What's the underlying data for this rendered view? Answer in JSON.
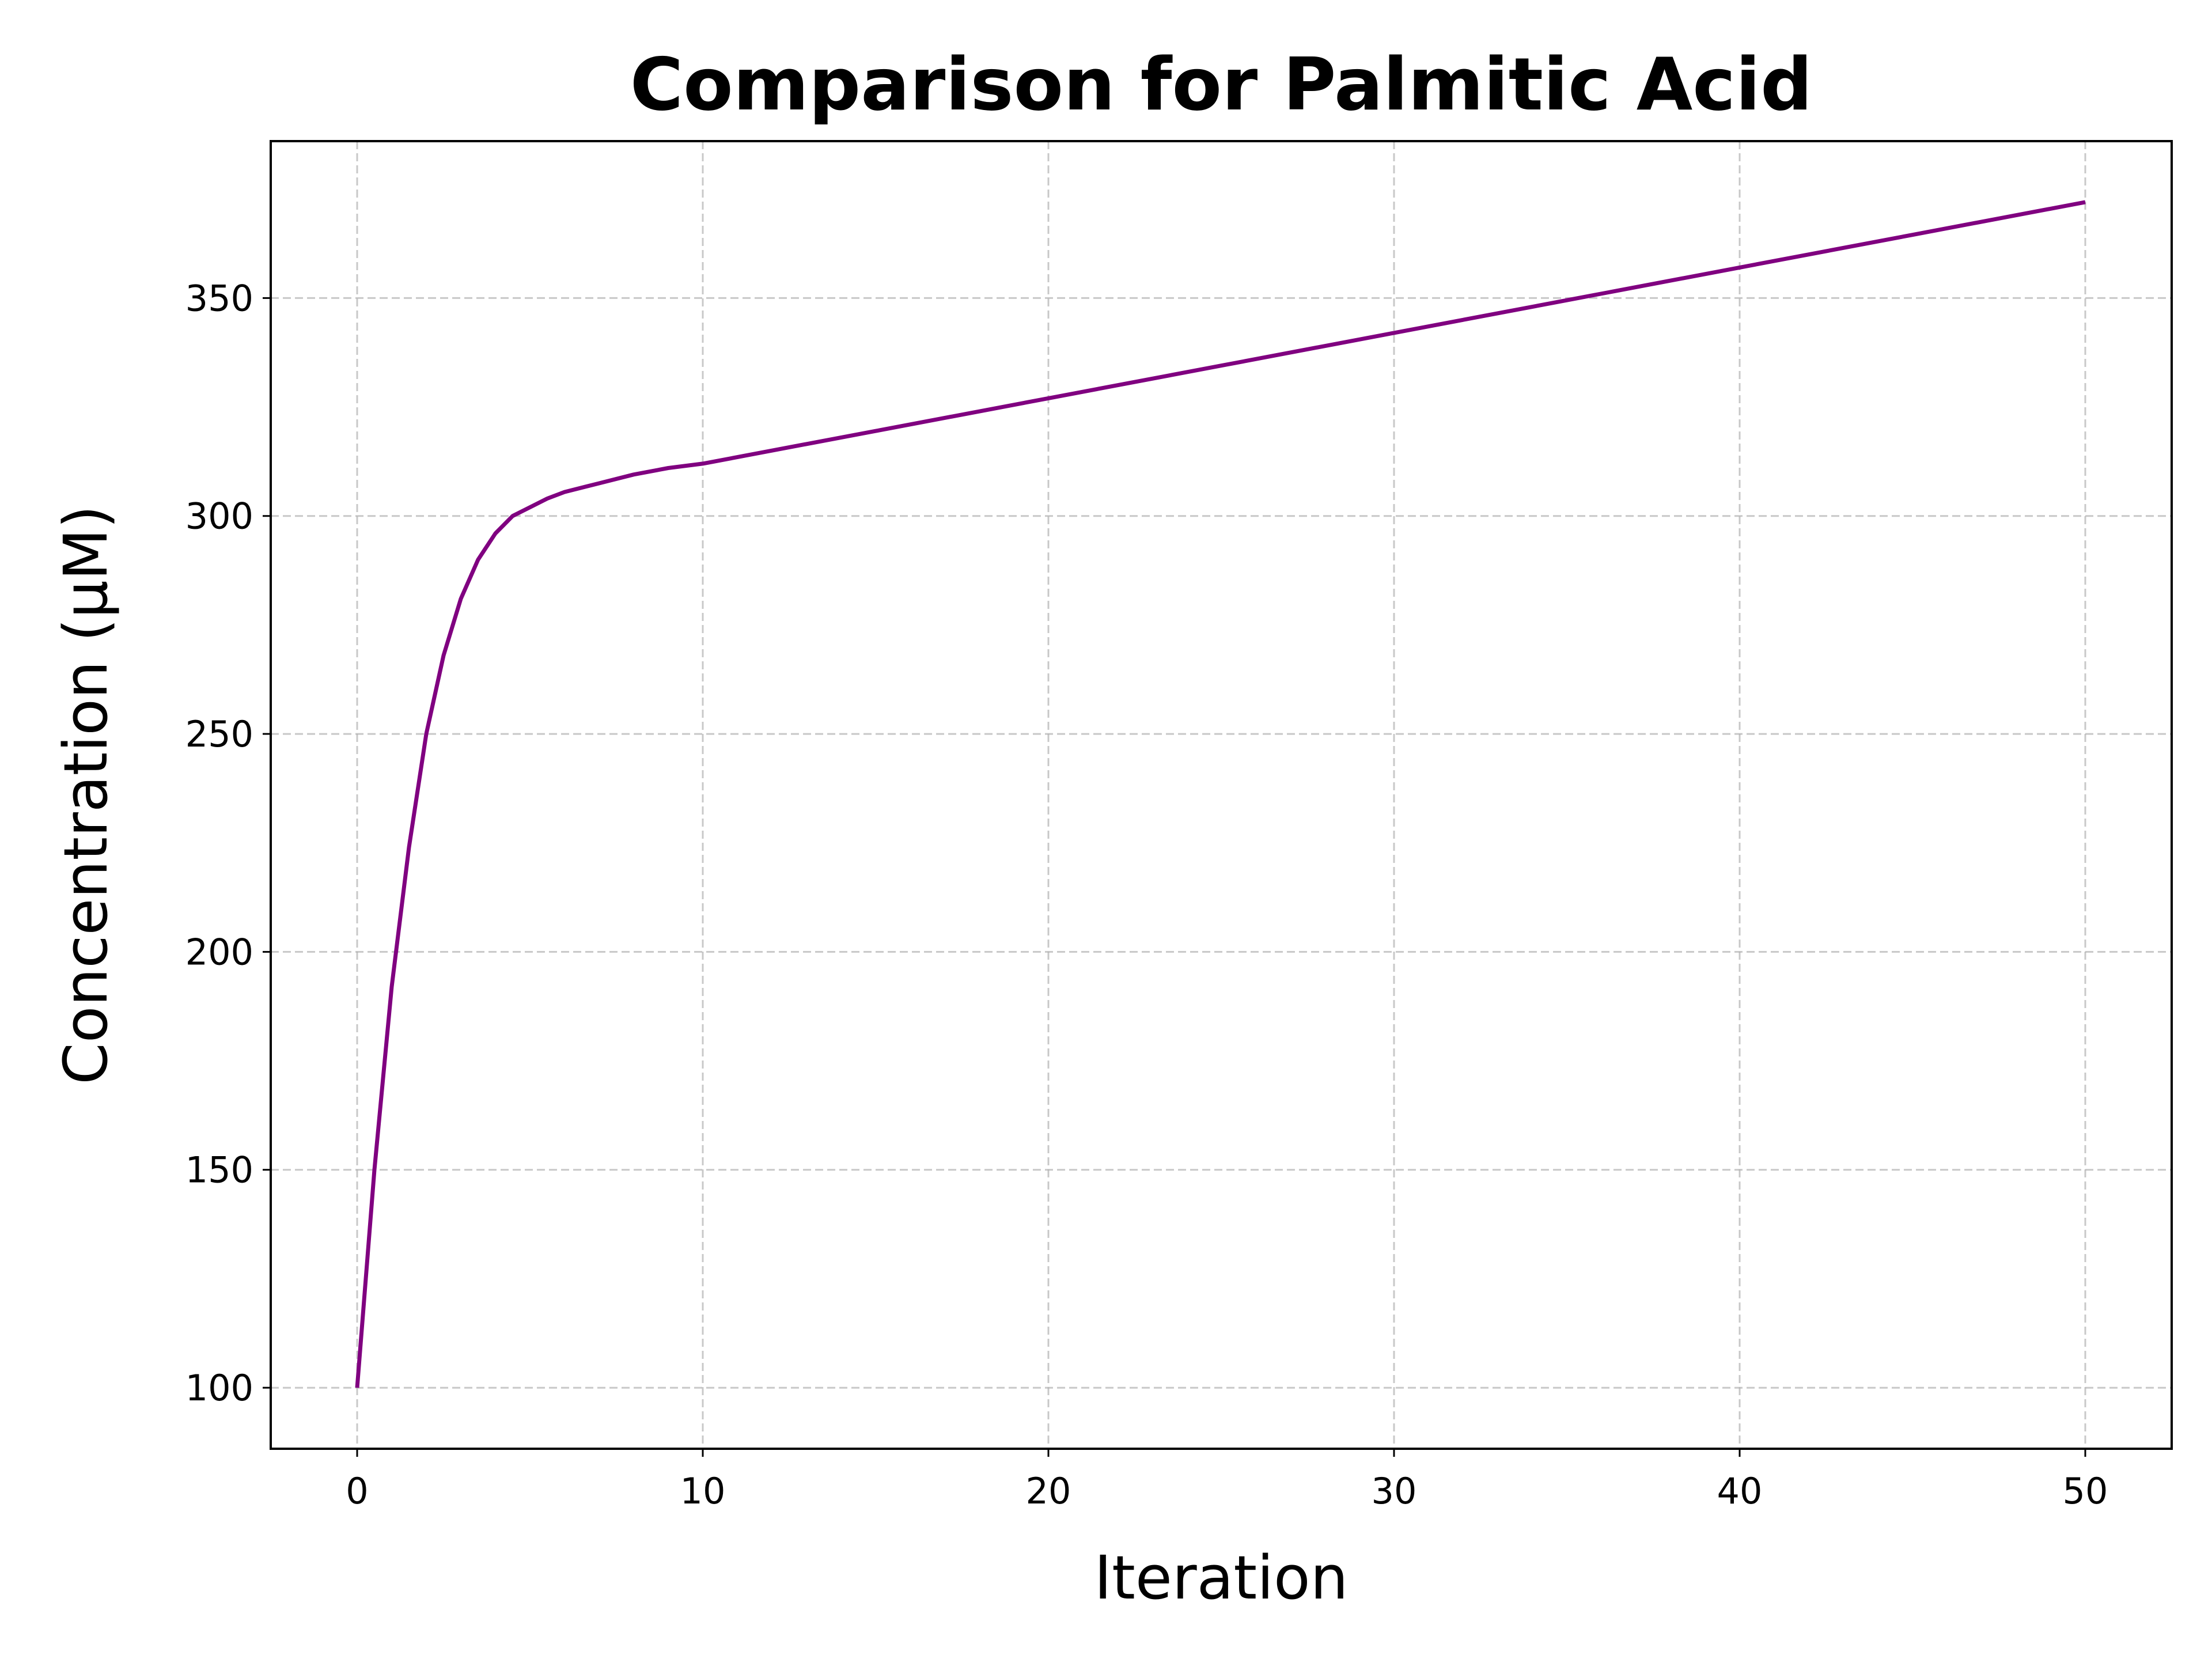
{
  "chart_data": {
    "type": "line",
    "title": "Comparison for Palmitic Acid",
    "xlabel": "Iteration",
    "ylabel": "Concentration (μM)",
    "xlim": [
      -2.5,
      52.5
    ],
    "ylim": [
      86,
      386
    ],
    "xticks": [
      0,
      10,
      20,
      30,
      40,
      50
    ],
    "yticks": [
      100,
      150,
      200,
      250,
      300,
      350
    ],
    "xtick_labels": [
      "0",
      "10",
      "20",
      "30",
      "40",
      "50"
    ],
    "ytick_labels": [
      "100",
      "150",
      "200",
      "250",
      "300",
      "350"
    ],
    "grid": true,
    "legend": "none",
    "series": [
      {
        "color": "#800080",
        "x": [
          0,
          0.5,
          1,
          1.5,
          2,
          2.5,
          3,
          3.5,
          4,
          4.5,
          5,
          5.5,
          6,
          7,
          8,
          9,
          10,
          12,
          15,
          20,
          25,
          30,
          35,
          40,
          45,
          50
        ],
        "values": [
          100,
          150,
          192,
          224,
          250,
          268,
          281,
          290,
          296,
          300,
          302,
          304,
          305.5,
          307.5,
          309.5,
          311,
          312,
          315,
          319.5,
          327,
          334.5,
          342,
          349.5,
          357,
          364.5,
          372
        ]
      }
    ]
  }
}
